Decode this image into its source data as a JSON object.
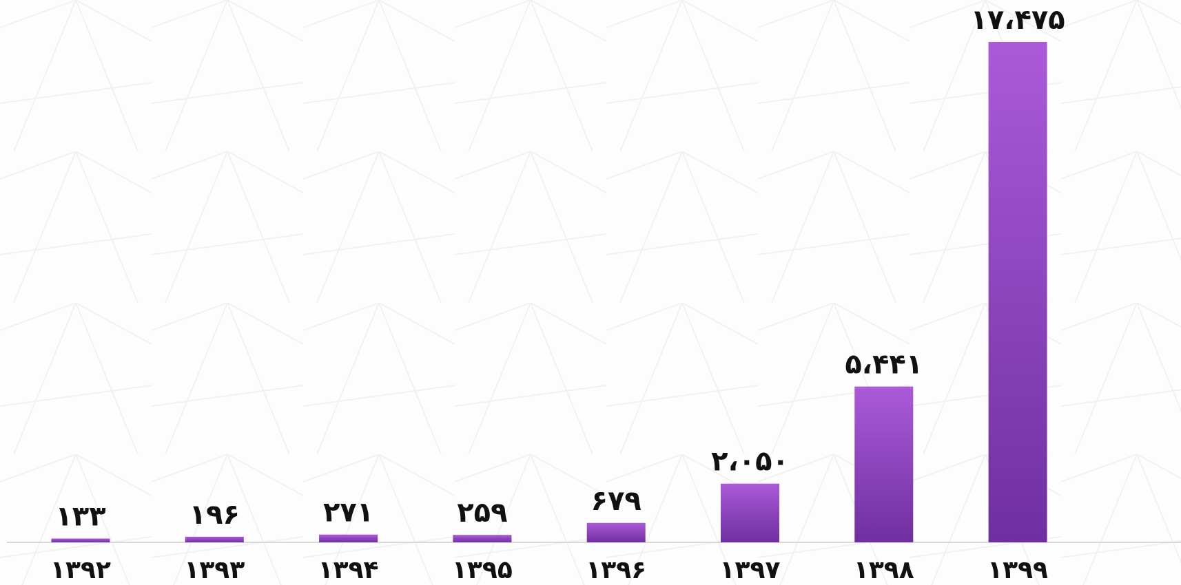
{
  "chart_data": {
    "type": "bar",
    "categories": [
      "۱۳۹۲",
      "۱۳۹۳",
      "۱۳۹۴",
      "۱۳۹۵",
      "۱۳۹۶",
      "۱۳۹۷",
      "۱۳۹۸",
      "۱۳۹۹"
    ],
    "values": [
      133,
      196,
      271,
      259,
      679,
      2050,
      5441,
      17475
    ],
    "value_labels": [
      "۱۳۳",
      "۱۹۶",
      "۲۷۱",
      "۲۵۹",
      "۶۷۹",
      "۲،۰۵۰",
      "۵،۴۴۱",
      "۱۷،۴۷۵"
    ],
    "color": "#8e44c4"
  }
}
